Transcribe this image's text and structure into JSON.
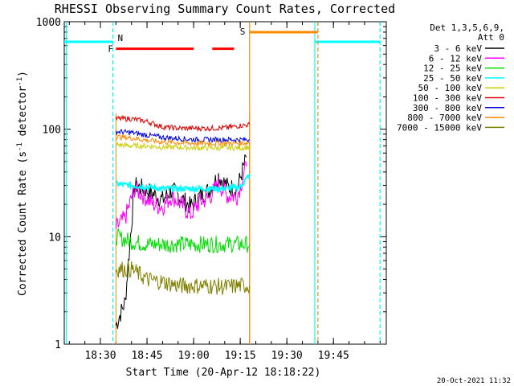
{
  "chart_data": {
    "type": "line",
    "title": "RHESSI Observing Summary Count Rates, Corrected",
    "xlabel": "Start Time (20-Apr-12 18:18:22)",
    "ylabel_main": "Corrected Count Rate (s",
    "ylabel_sup1": "-1",
    "ylabel_mid": " detector",
    "ylabel_sup2": "-1",
    "ylabel_end": ")",
    "y_scale": "log",
    "ylim": [
      1,
      1000
    ],
    "xlim": [
      "18:18:22",
      "20:02"
    ],
    "x_ticks": [
      "18:30",
      "18:45",
      "19:00",
      "19:15",
      "19:30",
      "19:45"
    ],
    "y_ticks": [
      "1",
      "10",
      "100",
      "1000"
    ],
    "legend_header": [
      "Det 1,3,5,6,9,",
      "Att 0"
    ],
    "legend_position": "top-right",
    "footer_date": "20-Oct-2021 11:32",
    "data_window": [
      "18:35",
      "19:18"
    ],
    "series": [
      {
        "name": "3 - 6 keV",
        "color": "#000000",
        "values": [
          [
            "18:35",
            1.5
          ],
          [
            "18:38",
            2.5
          ],
          [
            "18:41",
            30
          ],
          [
            "18:44",
            28
          ],
          [
            "18:47",
            25
          ],
          [
            "18:50",
            22
          ],
          [
            "18:53",
            27
          ],
          [
            "18:56",
            23
          ],
          [
            "18:59",
            19
          ],
          [
            "19:02",
            24
          ],
          [
            "19:05",
            27
          ],
          [
            "19:08",
            37
          ],
          [
            "19:11",
            29
          ],
          [
            "19:14",
            28
          ],
          [
            "19:17",
            55
          ]
        ]
      },
      {
        "name": "6 - 12 keV",
        "color": "#ff00ff",
        "values": [
          [
            "18:35",
            12
          ],
          [
            "18:38",
            15
          ],
          [
            "18:41",
            28
          ],
          [
            "18:44",
            24
          ],
          [
            "18:47",
            20
          ],
          [
            "18:50",
            19
          ],
          [
            "18:53",
            24
          ],
          [
            "18:56",
            20
          ],
          [
            "18:59",
            16
          ],
          [
            "19:02",
            21
          ],
          [
            "19:05",
            23
          ],
          [
            "19:08",
            31
          ],
          [
            "19:11",
            24
          ],
          [
            "19:14",
            24
          ],
          [
            "19:17",
            45
          ]
        ]
      },
      {
        "name": "12 - 25 keV",
        "color": "#00dd00",
        "values": [
          [
            "18:35",
            10
          ],
          [
            "18:40",
            9
          ],
          [
            "18:45",
            8.5
          ],
          [
            "18:50",
            8.5
          ],
          [
            "18:55",
            8.5
          ],
          [
            "19:00",
            8.5
          ],
          [
            "19:05",
            8.5
          ],
          [
            "19:10",
            8.5
          ],
          [
            "19:15",
            8.5
          ],
          [
            "19:18",
            8.5
          ]
        ]
      },
      {
        "name": "25 - 50 keV",
        "color": "#00ffff",
        "values": [
          [
            "18:35",
            31
          ],
          [
            "18:40",
            30
          ],
          [
            "18:45",
            29
          ],
          [
            "18:50",
            28
          ],
          [
            "18:55",
            28
          ],
          [
            "19:00",
            28
          ],
          [
            "19:05",
            28
          ],
          [
            "19:10",
            28
          ],
          [
            "19:15",
            29
          ],
          [
            "19:18",
            38
          ]
        ]
      },
      {
        "name": "50 - 100 keV",
        "color": "#cccc00",
        "values": [
          [
            "18:35",
            72
          ],
          [
            "18:40",
            70
          ],
          [
            "18:45",
            70
          ],
          [
            "18:50",
            68
          ],
          [
            "18:55",
            68
          ],
          [
            "19:00",
            67
          ],
          [
            "19:05",
            67
          ],
          [
            "19:10",
            67
          ],
          [
            "19:15",
            67
          ],
          [
            "19:18",
            68
          ]
        ]
      },
      {
        "name": "100 - 300 keV",
        "color": "#dd0000",
        "values": [
          [
            "18:35",
            125
          ],
          [
            "18:40",
            125
          ],
          [
            "18:45",
            118
          ],
          [
            "18:50",
            105
          ],
          [
            "18:55",
            102
          ],
          [
            "19:00",
            102
          ],
          [
            "19:05",
            102
          ],
          [
            "19:10",
            103
          ],
          [
            "19:15",
            108
          ],
          [
            "19:18",
            110
          ]
        ]
      },
      {
        "name": "300 - 800 keV",
        "color": "#0000dd",
        "values": [
          [
            "18:35",
            95
          ],
          [
            "18:40",
            93
          ],
          [
            "18:45",
            88
          ],
          [
            "18:50",
            84
          ],
          [
            "18:55",
            82
          ],
          [
            "19:00",
            80
          ],
          [
            "19:05",
            80
          ],
          [
            "19:10",
            80
          ],
          [
            "19:15",
            80
          ],
          [
            "19:18",
            80
          ]
        ]
      },
      {
        "name": "800 - 7000 keV",
        "color": "#ff8800",
        "values": [
          [
            "18:35",
            85
          ],
          [
            "18:40",
            83
          ],
          [
            "18:45",
            79
          ],
          [
            "18:50",
            76
          ],
          [
            "18:55",
            75
          ],
          [
            "19:00",
            74
          ],
          [
            "19:05",
            74
          ],
          [
            "19:10",
            74
          ],
          [
            "19:15",
            74
          ],
          [
            "19:18",
            75
          ]
        ]
      },
      {
        "name": "7000 - 15000 keV",
        "color": "#808000",
        "values": [
          [
            "18:35",
            5
          ],
          [
            "18:40",
            5
          ],
          [
            "18:45",
            4
          ],
          [
            "18:50",
            3.8
          ],
          [
            "18:55",
            3.5
          ],
          [
            "19:00",
            3.5
          ],
          [
            "19:05",
            3.5
          ],
          [
            "19:10",
            3.4
          ],
          [
            "19:15",
            3.5
          ],
          [
            "19:18",
            3.5
          ]
        ]
      }
    ],
    "flags": [
      {
        "label": "N",
        "color": "#00ffff",
        "segments": [
          [
            "18:18:22",
            "18:34"
          ],
          [
            "19:39",
            "20:00"
          ]
        ],
        "dashed_times": [
          "18:34",
          "20:00"
        ],
        "solid_times": [
          "18:19",
          "19:39"
        ]
      },
      {
        "label": "F",
        "color": "#ff0000",
        "segments": [
          [
            "18:35",
            "19:00"
          ],
          [
            "19:06",
            "19:13"
          ]
        ]
      },
      {
        "label": "S",
        "color": "#ff8800",
        "segments": [
          [
            "19:18",
            "19:40"
          ]
        ],
        "solid_times": [
          "19:18"
        ],
        "dashed_times": [
          "19:40"
        ]
      }
    ]
  }
}
